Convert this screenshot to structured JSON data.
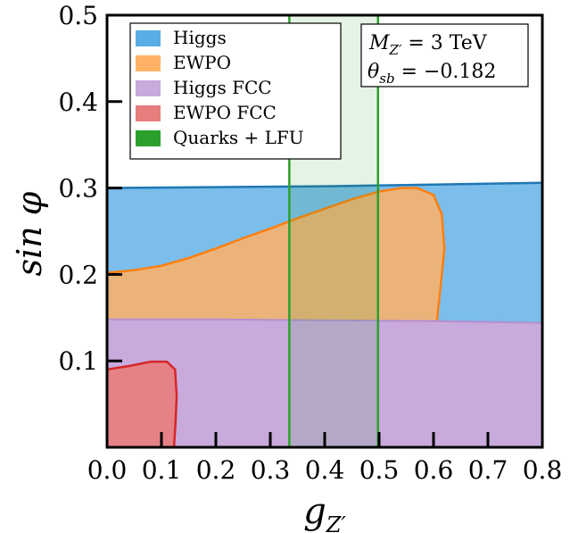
{
  "chart_data": {
    "type": "area",
    "xlabel": "g_{Z'}",
    "ylabel": "sin φ",
    "xlim": [
      0.0,
      0.8
    ],
    "ylim": [
      0.0,
      0.5
    ],
    "xticks": [
      "0.0",
      "0.1",
      "0.2",
      "0.3",
      "0.4",
      "0.5",
      "0.6",
      "0.7",
      "0.8"
    ],
    "yticks": [
      "0.1",
      "0.2",
      "0.3",
      "0.4",
      "0.5"
    ],
    "grid": false,
    "legend_position": "top-left",
    "annotation": {
      "line1": "M_{Z'} = 3 TeV",
      "line2": "θ_{sb} = −0.182"
    },
    "series": [
      {
        "name": "Higgs",
        "kind": "region",
        "color": "#5aace6",
        "boundary_color": "#1f77b4",
        "upper_boundary": [
          [
            0.0,
            0.3
          ],
          [
            0.2,
            0.301
          ],
          [
            0.4,
            0.302
          ],
          [
            0.6,
            0.304
          ],
          [
            0.8,
            0.306
          ]
        ]
      },
      {
        "name": "EWPO",
        "kind": "region",
        "color": "#ffb266",
        "boundary_color": "#ff7f0e",
        "boundary": [
          [
            0.0,
            0.202
          ],
          [
            0.05,
            0.205
          ],
          [
            0.1,
            0.21
          ],
          [
            0.15,
            0.219
          ],
          [
            0.2,
            0.23
          ],
          [
            0.25,
            0.242
          ],
          [
            0.3,
            0.253
          ],
          [
            0.35,
            0.265
          ],
          [
            0.4,
            0.276
          ],
          [
            0.45,
            0.287
          ],
          [
            0.5,
            0.296
          ],
          [
            0.54,
            0.3
          ],
          [
            0.57,
            0.3
          ],
          [
            0.6,
            0.292
          ],
          [
            0.615,
            0.27
          ],
          [
            0.62,
            0.23
          ],
          [
            0.612,
            0.18
          ],
          [
            0.605,
            0.14
          ],
          [
            0.598,
            0.1
          ],
          [
            0.592,
            0.05
          ],
          [
            0.59,
            0.0
          ]
        ]
      },
      {
        "name": "Higgs FCC",
        "kind": "region",
        "color": "#c8aadc",
        "boundary_color": "#b48fcf",
        "upper_boundary": [
          [
            0.0,
            0.148
          ],
          [
            0.2,
            0.148
          ],
          [
            0.4,
            0.147
          ],
          [
            0.6,
            0.146
          ],
          [
            0.8,
            0.144
          ]
        ]
      },
      {
        "name": "EWPO FCC",
        "kind": "region",
        "color": "#e87d7d",
        "boundary_color": "#d62728",
        "boundary": [
          [
            0.0,
            0.09
          ],
          [
            0.04,
            0.094
          ],
          [
            0.08,
            0.099
          ],
          [
            0.11,
            0.099
          ],
          [
            0.125,
            0.09
          ],
          [
            0.128,
            0.06
          ],
          [
            0.126,
            0.03
          ],
          [
            0.123,
            0.0
          ]
        ]
      },
      {
        "name": "Quarks + LFU",
        "kind": "band",
        "color": "#2ca02c",
        "x_range": [
          0.335,
          0.498
        ]
      }
    ]
  }
}
